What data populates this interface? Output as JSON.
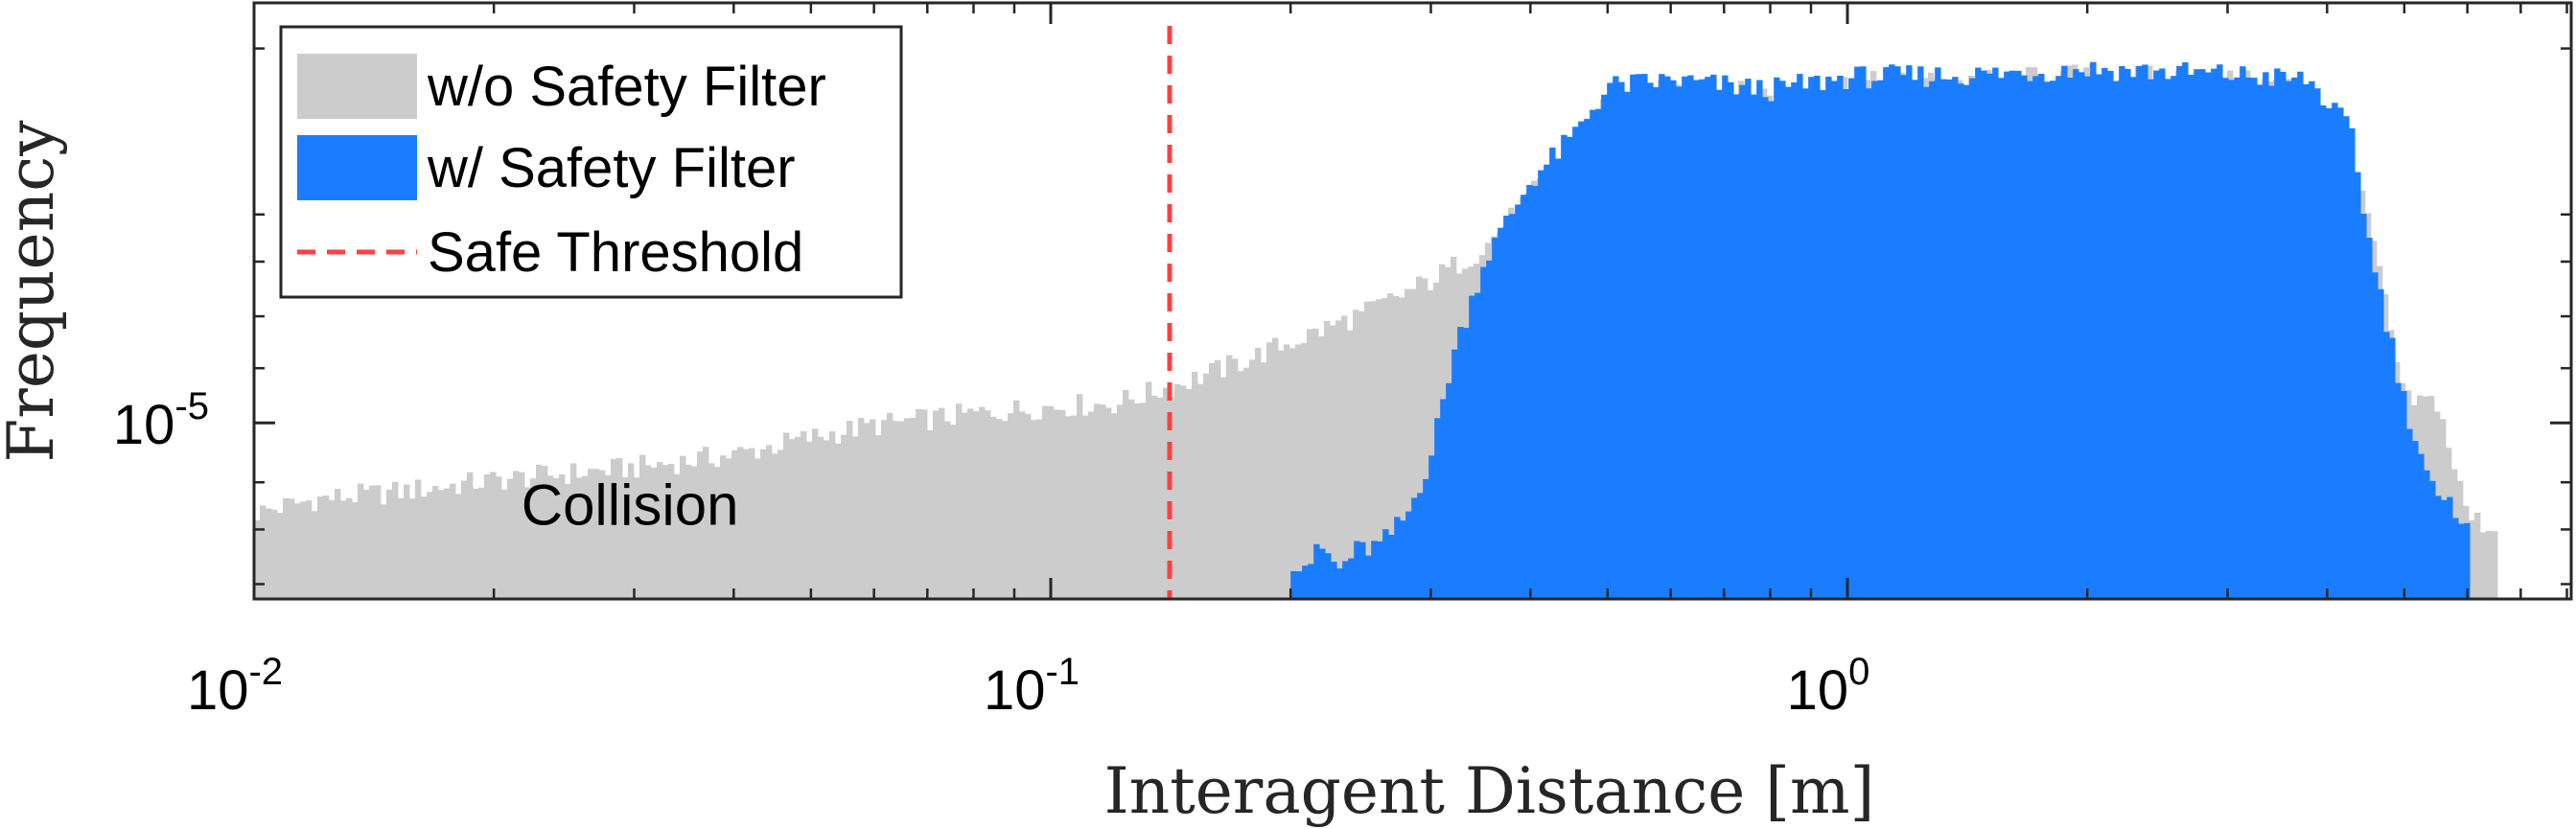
{
  "chart_data": {
    "type": "bar",
    "xlabel": "Interagent Distance [m]",
    "ylabel": "Frequency",
    "x_scale": "log",
    "y_scale": "log",
    "xlim": [
      0.01,
      8.1
    ],
    "ylim": [
      2.2e-06,
      0.00037
    ],
    "x_ticks": [
      {
        "value": 0.01,
        "label_base": "10",
        "label_exp": "-2"
      },
      {
        "value": 0.1,
        "label_base": "10",
        "label_exp": "-1"
      },
      {
        "value": 1,
        "label_base": "10",
        "label_exp": "0"
      }
    ],
    "y_ticks": [
      {
        "value": 1e-05,
        "label_base": "10",
        "label_exp": "-5"
      }
    ],
    "y_minor_ticks": [
      2.5e-06,
      4e-06,
      6e-06,
      1.6e-05,
      2.5e-05,
      4e-05,
      6e-05,
      0.00025
    ],
    "series": [
      {
        "name": "w/o Safety Filter",
        "color": "#cccccc",
        "points": [
          [
            0.01,
            4.6e-06
          ],
          [
            0.012,
            5.2e-06
          ],
          [
            0.015,
            5.5e-06
          ],
          [
            0.02,
            6.1e-06
          ],
          [
            0.03,
            6.8e-06
          ],
          [
            0.04,
            7.6e-06
          ],
          [
            0.05,
            8.8e-06
          ],
          [
            0.06,
            9.8e-06
          ],
          [
            0.08,
            1.08e-05
          ],
          [
            0.1,
            1.15e-05
          ],
          [
            0.12,
            1.18e-05
          ],
          [
            0.14,
            1.35e-05
          ],
          [
            0.17,
            1.65e-05
          ],
          [
            0.2,
            2e-05
          ],
          [
            0.25,
            2.6e-05
          ],
          [
            0.3,
            3.4e-05
          ],
          [
            0.35,
            4.5e-05
          ],
          [
            0.4,
            7e-05
          ],
          [
            0.45,
            0.000105
          ],
          [
            0.5,
            0.00016
          ],
          [
            0.6,
            0.000175
          ],
          [
            0.8,
            0.00017
          ],
          [
            1.0,
            0.000185
          ],
          [
            1.5,
            0.00019
          ],
          [
            2.0,
            0.0002
          ],
          [
            3.0,
            0.00019
          ],
          [
            3.8,
            0.00018
          ],
          [
            4.5,
            6e-05
          ],
          [
            5.0,
            1.2e-05
          ],
          [
            5.5,
            1.2e-05
          ],
          [
            6.0,
            4.5e-06
          ],
          [
            6.5,
            4e-06
          ]
        ]
      },
      {
        "name": "w/ Safety Filter",
        "color": "#1a7dff",
        "points": [
          [
            0.2,
            3.1e-06
          ],
          [
            0.21,
            3e-06
          ],
          [
            0.22,
            3.4e-06
          ],
          [
            0.23,
            2.8e-06
          ],
          [
            0.24,
            3.3e-06
          ],
          [
            0.26,
            3.5e-06
          ],
          [
            0.28,
            4.5e-06
          ],
          [
            0.3,
            7.5e-06
          ],
          [
            0.32,
            1.8e-05
          ],
          [
            0.35,
            4e-05
          ],
          [
            0.4,
            8e-05
          ],
          [
            0.45,
            0.000115
          ],
          [
            0.5,
            0.00018
          ],
          [
            0.6,
            0.00019
          ],
          [
            0.8,
            0.000175
          ],
          [
            1.0,
            0.000195
          ],
          [
            1.5,
            0.0002
          ],
          [
            2.0,
            0.00021
          ],
          [
            3.0,
            0.0002
          ],
          [
            3.8,
            0.00019
          ],
          [
            4.3,
            0.00012
          ],
          [
            4.5,
            5e-05
          ],
          [
            5.0,
            1.2e-05
          ],
          [
            5.5,
            5e-06
          ],
          [
            6.0,
            4.5e-06
          ]
        ]
      }
    ],
    "threshold": {
      "name": "Safe Threshold",
      "x": 0.141,
      "color": "#ff4040"
    },
    "annotations": [
      {
        "text": "Collision",
        "x": 0.035,
        "y": 5e-06
      }
    ],
    "legend": {
      "location": "top-left"
    },
    "grid": false
  }
}
